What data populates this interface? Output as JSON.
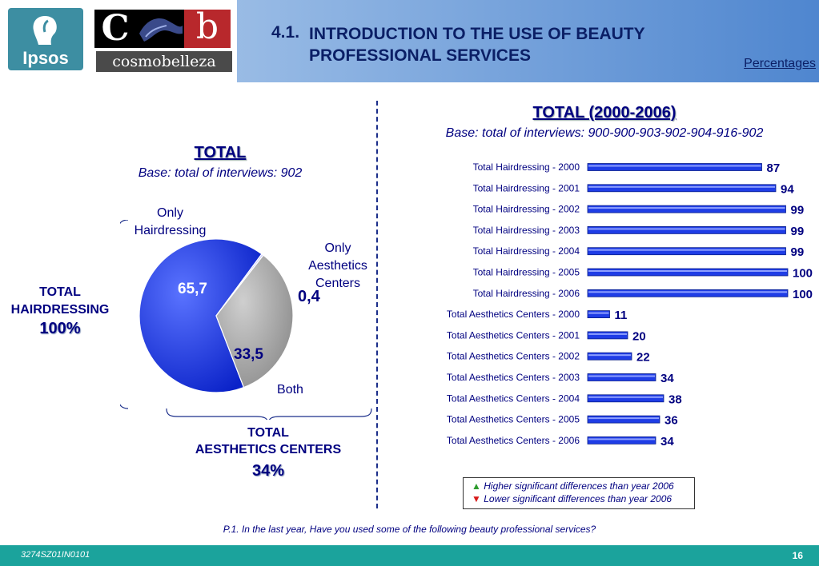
{
  "header": {
    "logo_ipsos": "Ipsos",
    "logo_c": "C",
    "logo_b": "b",
    "logo_cosmobelleza": "cosmobelleza",
    "title_number": "4.1.",
    "title_text": "INTRODUCTION TO THE USE OF BEAUTY PROFESSIONAL SERVICES",
    "percentages_link": "Percentages"
  },
  "chart_data": [
    {
      "type": "pie",
      "title": "TOTAL",
      "subtitle": "Base: total of interviews: 902",
      "slices": [
        {
          "label": "Only Hairdressing",
          "value": 65.7,
          "value_label": "65,7",
          "color": "#1f3de6"
        },
        {
          "label": "Only Aesthetics Centers",
          "value": 0.4,
          "value_label": "0,4",
          "color": "#c8c8ff"
        },
        {
          "label": "Both",
          "value": 33.5,
          "value_label": "33,5",
          "color": "#a8a8a8"
        }
      ],
      "group_labels": {
        "hairdressing_title": "TOTAL HAIRDRESSING",
        "hairdressing_value": "100%",
        "aesthetics_title_line1": "TOTAL",
        "aesthetics_title_line2": "AESTHETICS CENTERS",
        "aesthetics_value": "34%"
      }
    },
    {
      "type": "bar",
      "orientation": "horizontal",
      "title": "TOTAL (2000-2006)",
      "subtitle": "Base: total of interviews: 900-900-903-902-904-916-902",
      "xlim": [
        0,
        100
      ],
      "bar_color": "#1f3de6",
      "categories": [
        "Total Hairdressing - 2000",
        "Total Hairdressing - 2001",
        "Total Hairdressing - 2002",
        "Total Hairdressing - 2003",
        "Total Hairdressing - 2004",
        "Total Hairdressing - 2005",
        "Total Hairdressing - 2006",
        "Total Aesthetics Centers - 2000",
        "Total Aesthetics Centers - 2001",
        "Total Aesthetics Centers - 2002",
        "Total Aesthetics Centers - 2003",
        "Total Aesthetics Centers - 2004",
        "Total Aesthetics Centers - 2005",
        "Total Aesthetics Centers - 2006"
      ],
      "values": [
        87,
        94,
        99,
        99,
        99,
        100,
        100,
        11,
        20,
        22,
        34,
        38,
        36,
        34
      ]
    }
  ],
  "legend": {
    "higher": "Higher significant differences than year 2006",
    "lower": "Lower significant differences than year 2006"
  },
  "question": {
    "number": "P.1.",
    "text": "In the last year, Have you used some of the following beauty professional services?"
  },
  "footer": {
    "code": "3274SZ01IN0101",
    "page": "16"
  }
}
